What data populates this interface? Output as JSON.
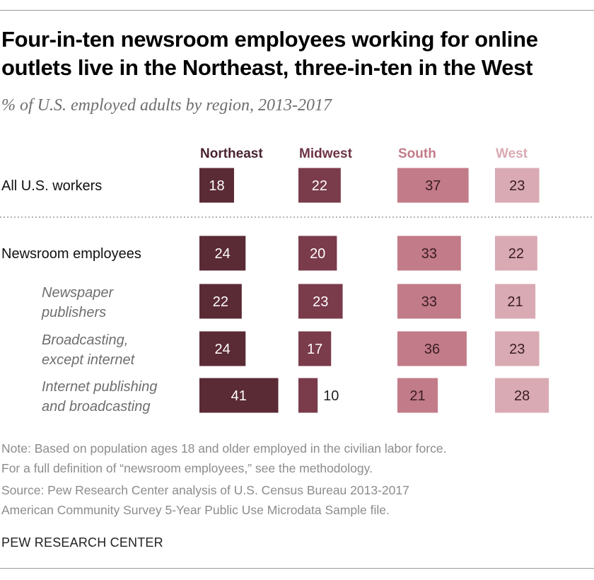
{
  "title": "Four-in-ten newsroom employees working for online outlets live in the Northeast, three-in-ten in the West",
  "subtitle": "% of U.S. employed adults by region, 2013-2017",
  "chart_data": {
    "type": "bar",
    "title": "Four-in-ten newsroom employees working for online outlets live in the Northeast, three-in-ten in the West",
    "subtitle": "% of U.S. employed adults by region, 2013-2017",
    "categories": [
      "All U.S. workers",
      "Newsroom employees",
      "Newspaper publishers",
      "Broadcasting, except internet",
      "Internet publishing and broadcasting"
    ],
    "category_lines": [
      [
        "All U.S. workers"
      ],
      [
        "Newsroom employees"
      ],
      [
        "Newspaper",
        "publishers"
      ],
      [
        "Broadcasting,",
        "except internet"
      ],
      [
        "Internet publishing",
        "and broadcasting"
      ]
    ],
    "category_italic": [
      false,
      false,
      true,
      true,
      true
    ],
    "series": [
      {
        "name": "Northeast",
        "values": [
          18,
          24,
          22,
          24,
          41
        ],
        "color": "#5a2a35"
      },
      {
        "name": "Midwest",
        "values": [
          22,
          20,
          23,
          17,
          10
        ],
        "color": "#7a3b4b"
      },
      {
        "name": "South",
        "values": [
          37,
          33,
          33,
          36,
          21
        ],
        "color": "#c27b88"
      },
      {
        "name": "West",
        "values": [
          23,
          22,
          21,
          23,
          28
        ],
        "color": "#d9aab3"
      }
    ],
    "header_colors": [
      "#4a2430",
      "#6e3544",
      "#c27b88",
      "#d9aab3"
    ],
    "label_colors": [
      "#ffffff",
      "#ffffff",
      "#3a1c24",
      "#3a1c24"
    ],
    "grid": false,
    "legend": "column-headers-top"
  },
  "notes": [
    "Note: Based on population ages 18 and older employed in the civilian labor force.",
    "For a full definition of “newsroom employees,” see the methodology.",
    "Source: Pew Research Center analysis of U.S. Census Bureau 2013-2017",
    "American Community Survey 5-Year Public Use Microdata Sample file."
  ],
  "brand": "PEW RESEARCH CENTER"
}
